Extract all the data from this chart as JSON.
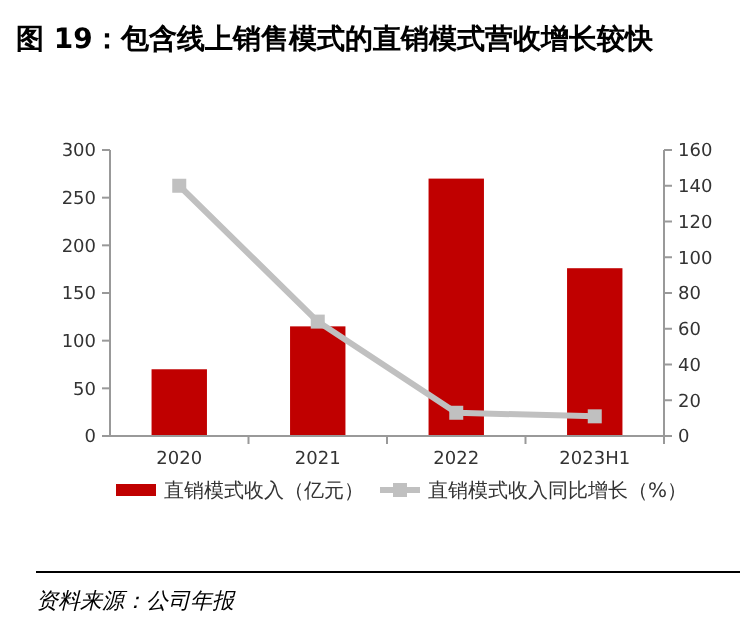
{
  "chart_data": {
    "type": "bar",
    "title": "图 19：包含线上销售模式的直销模式营收增长较快",
    "categories": [
      "2020",
      "2021",
      "2022",
      "2023H1"
    ],
    "series": [
      {
        "name": "直销模式收入（亿元）",
        "color": "#c00000",
        "values": [
          70,
          115,
          270,
          176
        ]
      },
      {
        "name": "直销模式收入同比增长（%）",
        "color": "#c0c0c0",
        "type": "line",
        "axis": "y2",
        "values": [
          140,
          64,
          13,
          11
        ]
      }
    ],
    "ylim": [
      0,
      300
    ],
    "yticks": [
      0,
      50,
      100,
      150,
      200,
      250,
      300
    ],
    "y2lim": [
      0,
      160
    ],
    "y2ticks": [
      0,
      20,
      40,
      60,
      80,
      100,
      120,
      140,
      160
    ],
    "marker": "square",
    "legend": "bottom",
    "grid": false,
    "annotations": [
      "资料来源：公司年报"
    ]
  }
}
